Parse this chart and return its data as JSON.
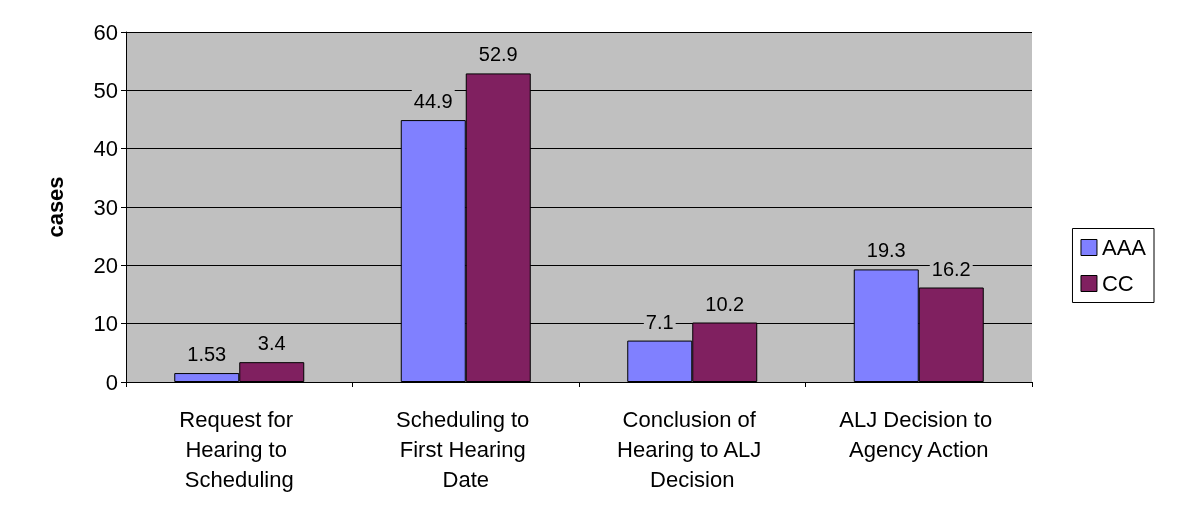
{
  "chart_data": {
    "type": "bar",
    "ylabel": "cases",
    "categories": [
      "Request for Hearing to Scheduling",
      "Scheduling to First Hearing Date",
      "Conclusion of Hearing to ALJ Decision",
      "ALJ Decision to Agency Action"
    ],
    "series": [
      {
        "name": "AAA",
        "color": "#8080ff",
        "values": [
          1.53,
          44.9,
          7.1,
          19.3
        ]
      },
      {
        "name": "CC",
        "color": "#802060",
        "values": [
          3.4,
          52.9,
          10.2,
          16.2
        ]
      }
    ],
    "ylim": [
      0,
      60
    ],
    "yticks": [
      0,
      10,
      20,
      30,
      40,
      50,
      60
    ],
    "grid": "y",
    "legend": "right",
    "data_labels": true
  }
}
